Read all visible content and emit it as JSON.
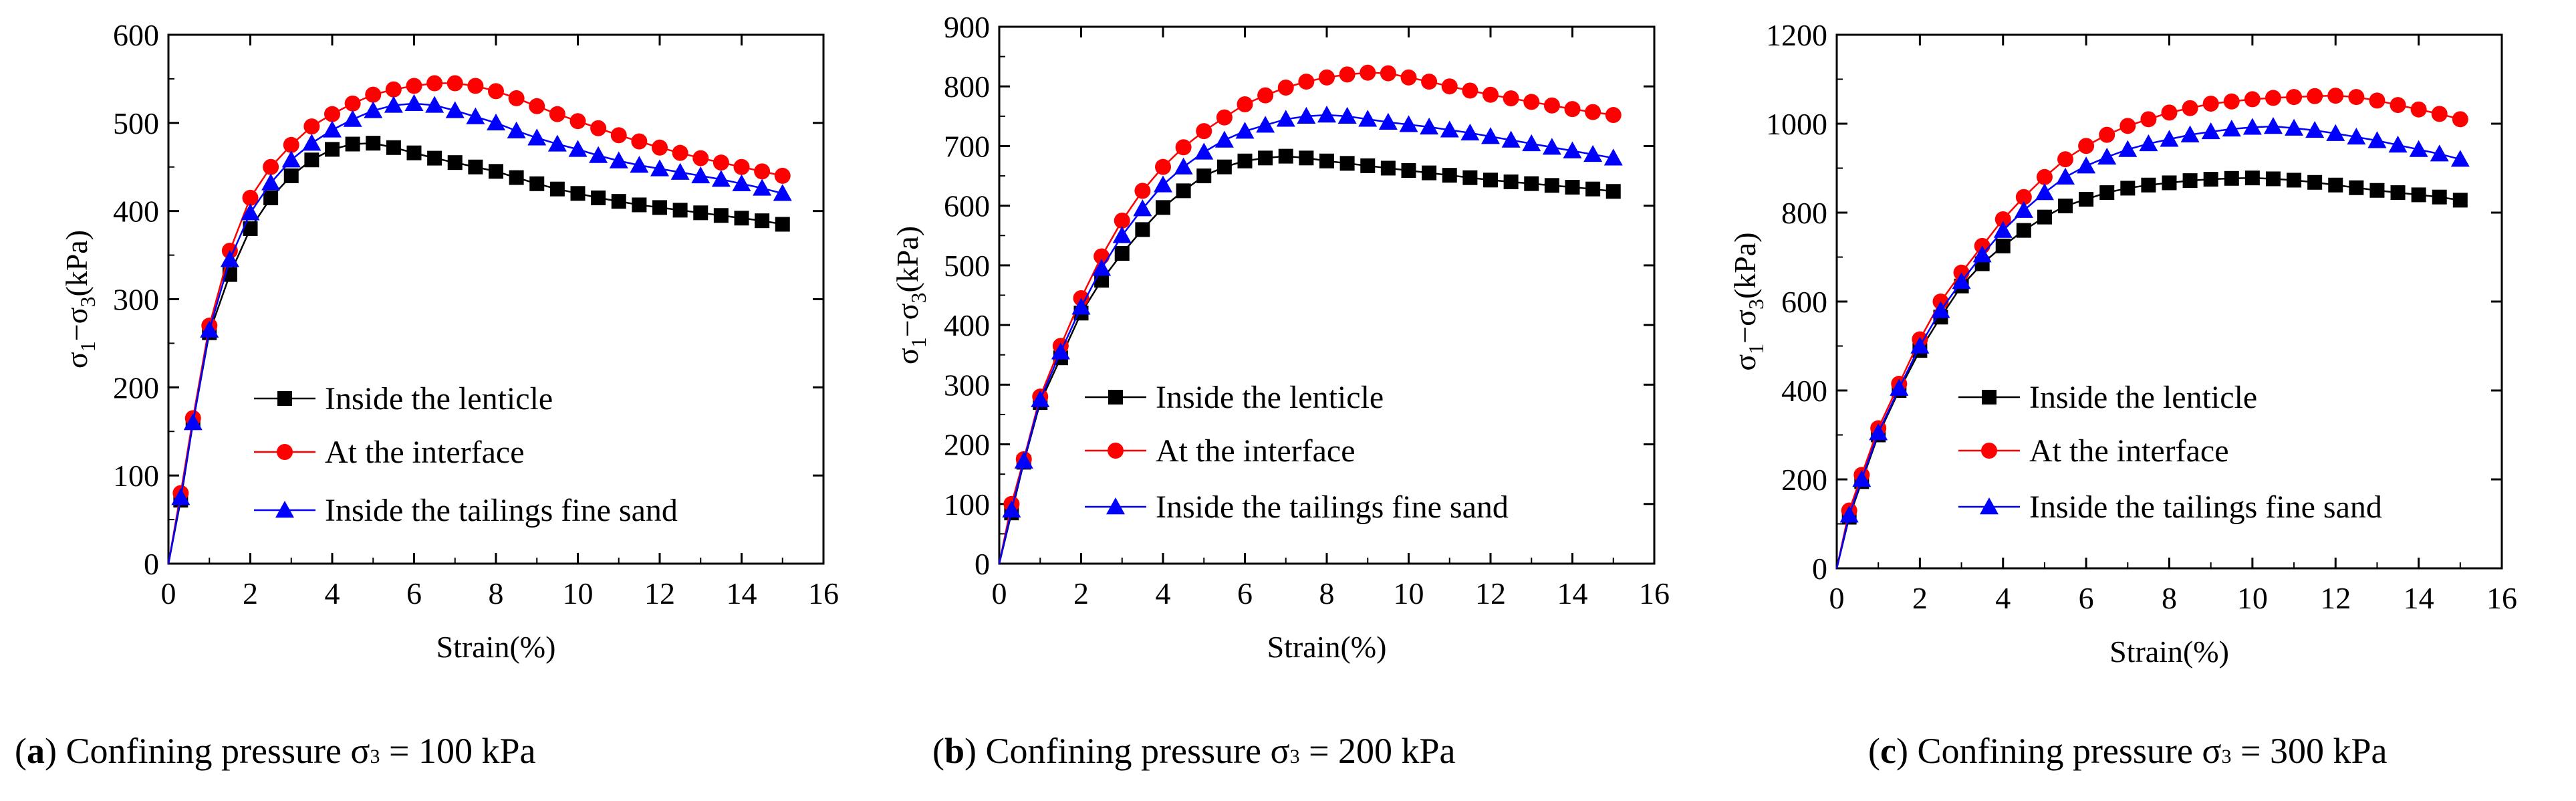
{
  "colors": {
    "inside_lenticle": "#000000",
    "at_interface": "#ff0000",
    "inside_tailings": "#0000ff"
  },
  "chart_data": [
    {
      "type": "line",
      "panel_letter": "a",
      "caption": "Confining pressure σ3 = 100 kPa",
      "caption_prefix": "Confining pressure σ",
      "caption_sub": "3",
      "caption_suffix": " = 100 kPa",
      "xlabel": "Strain(%)",
      "ylabel_sigma": "σ",
      "ylabel_sub1": "1",
      "ylabel_minus": "−σ",
      "ylabel_sub3": "3",
      "ylabel_unit": "(kPa)",
      "xlim": [
        0,
        16
      ],
      "ylim": [
        0,
        600
      ],
      "xticks": [
        0,
        2,
        4,
        6,
        8,
        10,
        12,
        14,
        16
      ],
      "yticks": [
        0,
        100,
        200,
        300,
        400,
        500,
        600
      ],
      "legend_position": "lower-right",
      "series": [
        {
          "name": "Inside the lenticle",
          "marker": "square",
          "color_key": "inside_lenticle",
          "x": [
            0,
            0.3,
            0.6,
            1,
            1.5,
            2,
            2.5,
            3,
            3.5,
            4,
            4.5,
            5,
            5.5,
            6,
            6.5,
            7,
            7.5,
            8,
            8.5,
            9,
            9.5,
            10,
            10.5,
            11,
            11.5,
            12,
            12.5,
            13,
            13.5,
            14,
            14.5,
            15
          ],
          "y": [
            0,
            72,
            160,
            262,
            328,
            380,
            415,
            440,
            458,
            470,
            476,
            477,
            472,
            466,
            460,
            455,
            450,
            445,
            438,
            431,
            425,
            420,
            415,
            411,
            407,
            404,
            401,
            398,
            395,
            392,
            389,
            385
          ]
        },
        {
          "name": "At the interface",
          "marker": "circle",
          "color_key": "at_interface",
          "x": [
            0,
            0.3,
            0.6,
            1,
            1.5,
            2,
            2.5,
            3,
            3.5,
            4,
            4.5,
            5,
            5.5,
            6,
            6.5,
            7,
            7.5,
            8,
            8.5,
            9,
            9.5,
            10,
            10.5,
            11,
            11.5,
            12,
            12.5,
            13,
            13.5,
            14,
            14.5,
            15
          ],
          "y": [
            0,
            80,
            165,
            270,
            355,
            415,
            450,
            475,
            496,
            510,
            522,
            532,
            538,
            542,
            545,
            545,
            542,
            536,
            528,
            519,
            510,
            502,
            494,
            486,
            479,
            472,
            466,
            460,
            455,
            450,
            445,
            440
          ]
        },
        {
          "name": "Inside the tailings fine sand",
          "marker": "triangle",
          "color_key": "inside_tailings",
          "x": [
            0,
            0.3,
            0.6,
            1,
            1.5,
            2,
            2.5,
            3,
            3.5,
            4,
            4.5,
            5,
            5.5,
            6,
            6.5,
            7,
            7.5,
            8,
            8.5,
            9,
            9.5,
            10,
            10.5,
            11,
            11.5,
            12,
            12.5,
            13,
            13.5,
            14,
            14.5,
            15
          ],
          "y": [
            0,
            75,
            160,
            265,
            345,
            398,
            432,
            458,
            477,
            492,
            504,
            514,
            520,
            522,
            520,
            514,
            507,
            500,
            491,
            483,
            476,
            470,
            463,
            457,
            452,
            448,
            444,
            440,
            436,
            431,
            426,
            420
          ]
        }
      ]
    },
    {
      "type": "line",
      "panel_letter": "b",
      "caption": "Confining pressure σ3 = 200 kPa",
      "caption_prefix": "Confining pressure σ",
      "caption_sub": "3",
      "caption_suffix": " = 200 kPa",
      "xlabel": "Strain(%)",
      "ylabel_sigma": "σ",
      "ylabel_sub1": "1",
      "ylabel_minus": "−σ",
      "ylabel_sub3": "3",
      "ylabel_unit": "(kPa)",
      "xlim": [
        0,
        16
      ],
      "ylim": [
        0,
        900
      ],
      "xticks": [
        0,
        2,
        4,
        6,
        8,
        10,
        12,
        14,
        16
      ],
      "yticks": [
        0,
        100,
        200,
        300,
        400,
        500,
        600,
        700,
        800,
        900
      ],
      "legend_position": "lower-right",
      "series": [
        {
          "name": "Inside the lenticle",
          "marker": "square",
          "color_key": "inside_lenticle",
          "x": [
            0,
            0.3,
            0.6,
            1,
            1.5,
            2,
            2.5,
            3,
            3.5,
            4,
            4.5,
            5,
            5.5,
            6,
            6.5,
            7,
            7.5,
            8,
            8.5,
            9,
            9.5,
            10,
            10.5,
            11,
            11.5,
            12,
            12.5,
            13,
            13.5,
            14,
            14.5,
            15
          ],
          "y": [
            0,
            85,
            170,
            270,
            345,
            420,
            475,
            520,
            560,
            597,
            625,
            650,
            665,
            675,
            680,
            683,
            680,
            675,
            671,
            667,
            663,
            659,
            655,
            651,
            647,
            643,
            640,
            637,
            634,
            631,
            628,
            624
          ]
        },
        {
          "name": "At the interface",
          "marker": "circle",
          "color_key": "at_interface",
          "x": [
            0,
            0.3,
            0.6,
            1,
            1.5,
            2,
            2.5,
            3,
            3.5,
            4,
            4.5,
            5,
            5.5,
            6,
            6.5,
            7,
            7.5,
            8,
            8.5,
            9,
            9.5,
            10,
            10.5,
            11,
            11.5,
            12,
            12.5,
            13,
            13.5,
            14,
            14.5,
            15
          ],
          "y": [
            0,
            100,
            175,
            280,
            365,
            445,
            515,
            575,
            625,
            665,
            698,
            725,
            748,
            770,
            785,
            798,
            808,
            815,
            820,
            823,
            822,
            815,
            808,
            800,
            793,
            786,
            780,
            774,
            768,
            762,
            757,
            752
          ]
        },
        {
          "name": "Inside the tailings fine sand",
          "marker": "triangle",
          "color_key": "inside_tailings",
          "x": [
            0,
            0.3,
            0.6,
            1,
            1.5,
            2,
            2.5,
            3,
            3.5,
            4,
            4.5,
            5,
            5.5,
            6,
            6.5,
            7,
            7.5,
            8,
            8.5,
            9,
            9.5,
            10,
            10.5,
            11,
            11.5,
            12,
            12.5,
            13,
            13.5,
            14,
            14.5,
            15
          ],
          "y": [
            0,
            90,
            172,
            275,
            355,
            430,
            495,
            550,
            595,
            635,
            665,
            690,
            710,
            725,
            735,
            745,
            750,
            752,
            750,
            745,
            740,
            736,
            732,
            727,
            722,
            716,
            710,
            704,
            698,
            692,
            686,
            680
          ]
        }
      ]
    },
    {
      "type": "line",
      "panel_letter": "c",
      "caption": "Confining pressure σ3 = 300 kPa",
      "caption_prefix": "Confining pressure σ",
      "caption_sub": "3",
      "caption_suffix": " = 300 kPa",
      "xlabel": "Strain(%)",
      "ylabel_sigma": "σ",
      "ylabel_sub1": "1",
      "ylabel_minus": "−σ",
      "ylabel_sub3": "3",
      "ylabel_unit": "(kPa)",
      "xlim": [
        0,
        16
      ],
      "ylim": [
        0,
        1200
      ],
      "xticks": [
        0,
        2,
        4,
        6,
        8,
        10,
        12,
        14,
        16
      ],
      "yticks": [
        0,
        200,
        400,
        600,
        800,
        1000,
        1200
      ],
      "legend_position": "lower-right",
      "series": [
        {
          "name": "Inside the lenticle",
          "marker": "square",
          "color_key": "inside_lenticle",
          "x": [
            0,
            0.3,
            0.6,
            1,
            1.5,
            2,
            2.5,
            3,
            3.5,
            4,
            4.5,
            5,
            5.5,
            6,
            6.5,
            7,
            7.5,
            8,
            8.5,
            9,
            9.5,
            10,
            10.5,
            11,
            11.5,
            12,
            12.5,
            13,
            13.5,
            14,
            14.5,
            15
          ],
          "y": [
            0,
            115,
            195,
            300,
            400,
            490,
            565,
            635,
            685,
            725,
            760,
            790,
            815,
            830,
            845,
            855,
            862,
            867,
            872,
            875,
            877,
            878,
            876,
            873,
            868,
            862,
            856,
            850,
            845,
            840,
            835,
            828
          ]
        },
        {
          "name": "At the interface",
          "marker": "circle",
          "color_key": "at_interface",
          "x": [
            0,
            0.3,
            0.6,
            1,
            1.5,
            2,
            2.5,
            3,
            3.5,
            4,
            4.5,
            5,
            5.5,
            6,
            6.5,
            7,
            7.5,
            8,
            8.5,
            9,
            9.5,
            10,
            10.5,
            11,
            11.5,
            12,
            12.5,
            13,
            13.5,
            14,
            14.5,
            15
          ],
          "y": [
            0,
            130,
            210,
            315,
            415,
            515,
            600,
            665,
            725,
            785,
            835,
            880,
            920,
            950,
            975,
            995,
            1010,
            1025,
            1035,
            1045,
            1050,
            1055,
            1058,
            1060,
            1062,
            1063,
            1060,
            1052,
            1042,
            1032,
            1022,
            1010
          ]
        },
        {
          "name": "Inside the tailings fine sand",
          "marker": "triangle",
          "color_key": "inside_tailings",
          "x": [
            0,
            0.3,
            0.6,
            1,
            1.5,
            2,
            2.5,
            3,
            3.5,
            4,
            4.5,
            5,
            5.5,
            6,
            6.5,
            7,
            7.5,
            8,
            8.5,
            9,
            9.5,
            10,
            10.5,
            11,
            11.5,
            12,
            12.5,
            13,
            13.5,
            14,
            14.5,
            15
          ],
          "y": [
            0,
            120,
            200,
            305,
            405,
            500,
            580,
            645,
            705,
            760,
            805,
            845,
            880,
            905,
            925,
            942,
            955,
            965,
            975,
            982,
            988,
            992,
            994,
            990,
            985,
            978,
            970,
            962,
            952,
            942,
            932,
            920
          ]
        }
      ]
    }
  ]
}
